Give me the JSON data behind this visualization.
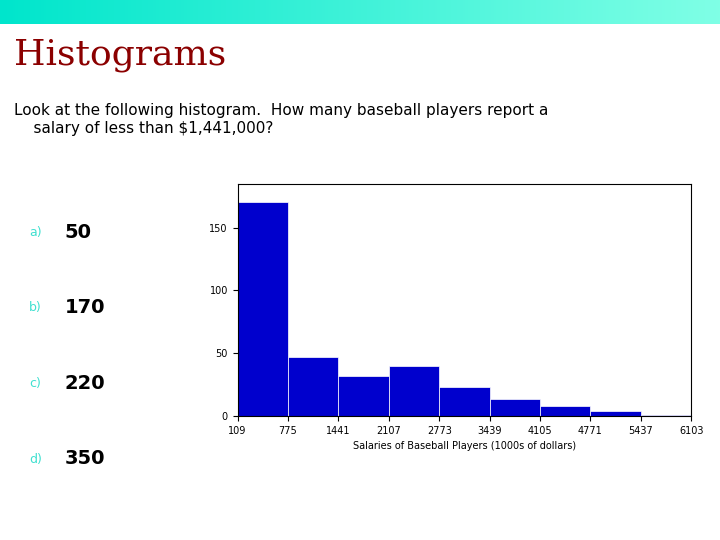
{
  "title": "Histograms",
  "title_color": "#8B0000",
  "title_fontsize": 26,
  "question_text": "Look at the following histogram.  How many baseball players report a\n    salary of less than $1,441,000?",
  "question_fontsize": 11,
  "background_color": "#ffffff",
  "answer_options": [
    "50",
    "170",
    "220",
    "350"
  ],
  "answer_labels": [
    "a)",
    "b)",
    "c)",
    "d)"
  ],
  "answer_label_color": "#40E0D0",
  "answer_value_color": "#000000",
  "answer_fontsize": 14,
  "answer_label_fontsize": 9,
  "hist_bar_color": "#0000CD",
  "hist_bar_edgecolor": "#ffffff",
  "hist_xlabel": "Salaries of Baseball Players (1000s of dollars)",
  "hist_xlabel_fontsize": 7,
  "hist_yticks": [
    0,
    50,
    100,
    150
  ],
  "hist_xtick_labels": [
    "109",
    "775",
    "1441",
    "2107",
    "2773",
    "3439",
    "4105",
    "4771",
    "5437",
    "6103"
  ],
  "bin_edges": [
    109,
    775,
    1441,
    2107,
    2773,
    3439,
    4105,
    4771,
    5437,
    6103
  ],
  "bar_heights": [
    170,
    47,
    32,
    40,
    23,
    13,
    8,
    4,
    1
  ],
  "hist_ylim": [
    0,
    185
  ],
  "hist_xlim": [
    109,
    6103
  ],
  "header_color_left": "#7FFFD4",
  "header_color_right": "#7FFFD4"
}
